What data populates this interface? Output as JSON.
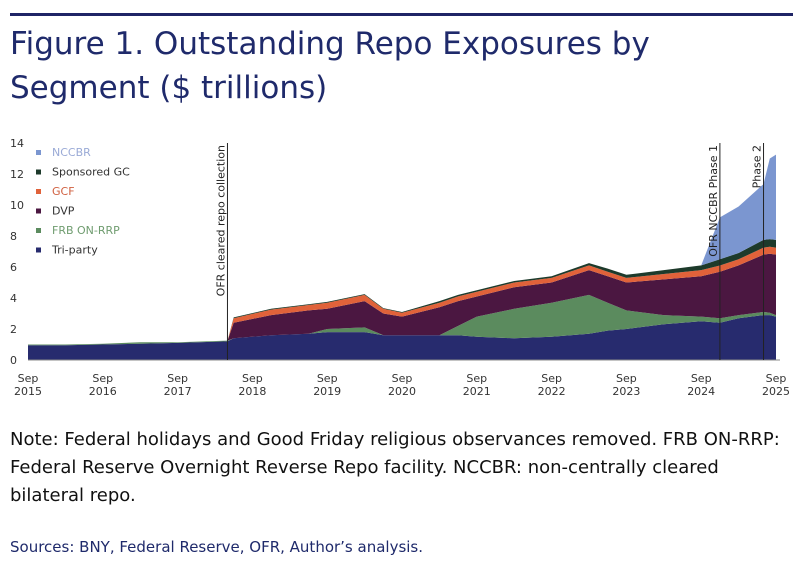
{
  "title": "Figure 1. Outstanding Repo Exposures by Segment ($ trillions)",
  "note": "Note: Federal holidays and Good Friday religious observances removed. FRB ON-RRP: Federal Reserve Overnight Reverse Repo facility. NCCBR: non-centrally cleared bilateral repo.",
  "sources": "Sources: BNY, Federal Reserve, OFR, Author’s analysis.",
  "chart_data": {
    "type": "area",
    "stacked": true,
    "title": "",
    "xlabel": "",
    "ylabel": "",
    "ylim": [
      0,
      14
    ],
    "yticks": [
      0,
      2,
      4,
      6,
      8,
      10,
      12,
      14
    ],
    "xticks": [
      "Sep 2015",
      "Sep 2016",
      "Sep 2017",
      "Sep 2018",
      "Sep 2019",
      "Sep 2020",
      "Sep 2021",
      "Sep 2022",
      "Sep 2023",
      "Sep 2024",
      "Sep 2025"
    ],
    "xlim": [
      "2015-09",
      "2025-09"
    ],
    "grid": false,
    "legend": "top-left",
    "x": [
      "2015-09",
      "2016-03",
      "2016-09",
      "2017-03",
      "2017-09",
      "2018-05",
      "2018-06",
      "2018-12",
      "2019-06",
      "2019-09",
      "2020-03",
      "2020-06",
      "2020-09",
      "2021-03",
      "2021-06",
      "2021-09",
      "2022-03",
      "2022-09",
      "2023-03",
      "2023-06",
      "2023-09",
      "2024-03",
      "2024-09",
      "2024-12",
      "2025-03",
      "2025-07",
      "2025-08",
      "2025-09"
    ],
    "series": [
      {
        "name": "Tri-party",
        "color": "#272b6e",
        "values": [
          0.95,
          0.95,
          1.0,
          1.05,
          1.1,
          1.2,
          1.4,
          1.6,
          1.7,
          1.8,
          1.8,
          1.6,
          1.6,
          1.6,
          1.6,
          1.5,
          1.4,
          1.5,
          1.7,
          1.9,
          2.0,
          2.3,
          2.5,
          2.4,
          2.7,
          2.9,
          2.9,
          2.8
        ]
      },
      {
        "name": "FRB ON-RRP",
        "color": "#5b8b5e",
        "values": [
          0.05,
          0.05,
          0.05,
          0.1,
          0.05,
          0.05,
          0,
          0,
          0,
          0.2,
          0.3,
          0,
          0,
          0,
          0.6,
          1.3,
          1.9,
          2.2,
          2.5,
          1.8,
          1.2,
          0.6,
          0.3,
          0.3,
          0.2,
          0.2,
          0.15,
          0.1
        ]
      },
      {
        "name": "DVP",
        "color": "#4b1741",
        "values": [
          0,
          0,
          0,
          0,
          0,
          0,
          1.0,
          1.3,
          1.5,
          1.3,
          1.7,
          1.4,
          1.2,
          1.8,
          1.6,
          1.3,
          1.4,
          1.3,
          1.6,
          1.7,
          1.8,
          2.3,
          2.6,
          3.0,
          3.2,
          3.7,
          3.8,
          3.9
        ]
      },
      {
        "name": "GCF",
        "color": "#e0623a",
        "values": [
          0,
          0,
          0,
          0,
          0,
          0,
          0.3,
          0.35,
          0.35,
          0.4,
          0.4,
          0.3,
          0.25,
          0.3,
          0.3,
          0.3,
          0.3,
          0.3,
          0.3,
          0.3,
          0.3,
          0.35,
          0.4,
          0.4,
          0.4,
          0.45,
          0.45,
          0.45
        ]
      },
      {
        "name": "Sponsored GC",
        "color": "#1d3a2b",
        "values": [
          0,
          0,
          0,
          0,
          0,
          0,
          0.05,
          0.05,
          0.05,
          0.05,
          0.05,
          0.05,
          0.05,
          0.1,
          0.1,
          0.1,
          0.1,
          0.1,
          0.15,
          0.2,
          0.2,
          0.25,
          0.3,
          0.4,
          0.4,
          0.5,
          0.5,
          0.5
        ]
      },
      {
        "name": "NCCBR",
        "color": "#7b96d0",
        "values": [
          0,
          0,
          0,
          0,
          0,
          0,
          0,
          0,
          0,
          0,
          0,
          0,
          0,
          0,
          0,
          0,
          0,
          0,
          0,
          0,
          0,
          0,
          0,
          2.7,
          3.0,
          3.6,
          5.2,
          5.5
        ]
      }
    ],
    "annotations": [
      {
        "x": "2018-05",
        "label": "OFR cleared repo collection"
      },
      {
        "x": "2024-12",
        "label": "OFR NCCBR Phase 1"
      },
      {
        "x": "2025-07",
        "label": "Phase 2"
      }
    ]
  }
}
